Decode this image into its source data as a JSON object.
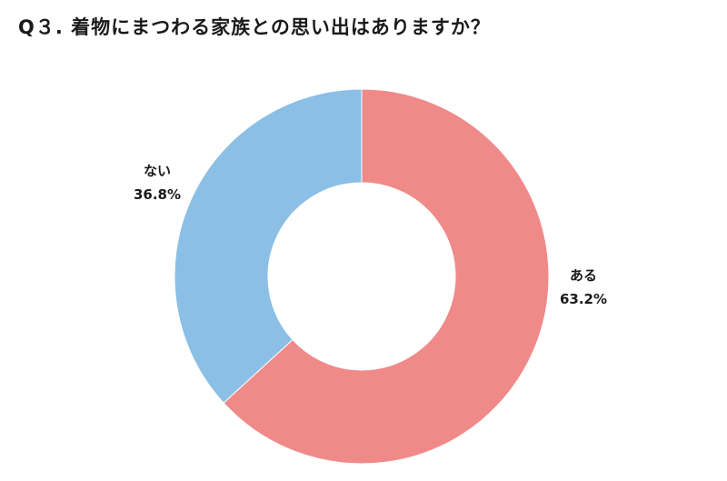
{
  "title": "Q３. 着物にまつわる家族との思い出はありますか？",
  "chart_data": {
    "type": "pie",
    "title": "Q３. 着物にまつわる家族との思い出はありますか？",
    "slices": [
      {
        "label": "ある",
        "value": 63.2,
        "value_label": "63.2%",
        "color": "#ef8a89"
      },
      {
        "label": "ない",
        "value": 36.8,
        "value_label": "36.8%",
        "color": "#8bbfe5"
      }
    ],
    "donut": true,
    "legend": "none"
  }
}
